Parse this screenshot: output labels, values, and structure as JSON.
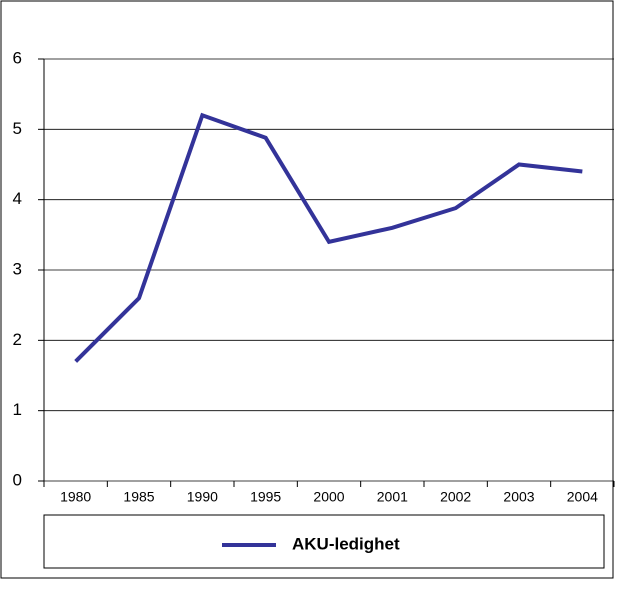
{
  "chart_data": {
    "type": "line",
    "categories": [
      "1980",
      "1985",
      "1990",
      "1995",
      "2000",
      "2001",
      "2002",
      "2003",
      "2004"
    ],
    "series": [
      {
        "name": "AKU-ledighet",
        "color": "#333399",
        "values": [
          1.7,
          2.6,
          5.2,
          4.88,
          3.4,
          3.6,
          3.88,
          4.5,
          4.4
        ]
      }
    ],
    "ylim": [
      0,
      6
    ],
    "yticks": [
      0,
      1,
      2,
      3,
      4,
      5,
      6
    ],
    "grid": true,
    "legend": "bottom"
  }
}
